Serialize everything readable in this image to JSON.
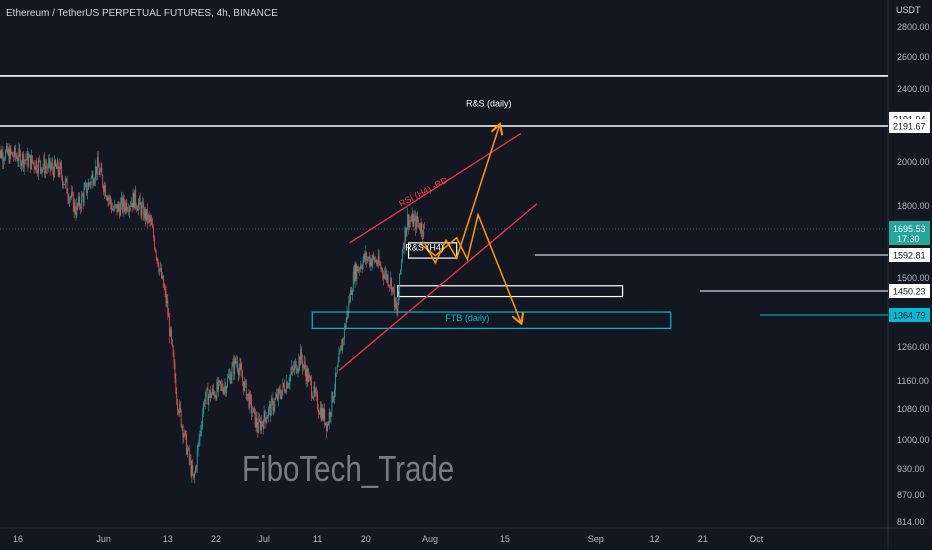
{
  "header": {
    "title": "Ethereum / TetherUS PERPETUAL FUTURES, 4h, BINANCE"
  },
  "watermark": "FiboTech_Trade",
  "colors": {
    "background": "#131722",
    "candle_up": "#26a69a",
    "candle_down": "#ef5350",
    "white_line": "#ffffff",
    "channel_red": "#f23645",
    "arrow_orange": "#ff9800",
    "ftb_cyan": "#00bcd4",
    "axis_text": "#b2b5be"
  },
  "chart_data": {
    "type": "candlestick",
    "unit_label": "USDT",
    "y_ticks": [
      "2800.00",
      "2600.00",
      "2400.00",
      "2000.00",
      "1800.00",
      "1500.00",
      "1260.00",
      "1160.00",
      "1080.00",
      "1000.00",
      "930.00",
      "870.00",
      "814.00"
    ],
    "y_tick_values": [
      2800,
      2600,
      2400,
      2000,
      1800,
      1500,
      1260,
      1160,
      1080,
      1000,
      930,
      870,
      814
    ],
    "x_ticks": [
      {
        "label": "16",
        "date": "2022-05-16"
      },
      {
        "label": "Jun",
        "date": "2022-06-01"
      },
      {
        "label": "13",
        "date": "2022-06-13"
      },
      {
        "label": "22",
        "date": "2022-06-22"
      },
      {
        "label": "Jul",
        "date": "2022-07-01"
      },
      {
        "label": "11",
        "date": "2022-07-11"
      },
      {
        "label": "20",
        "date": "2022-07-20"
      },
      {
        "label": "Aug",
        "date": "2022-08-01"
      },
      {
        "label": "15",
        "date": "2022-08-15"
      },
      {
        "label": "Sep",
        "date": "2022-09-01"
      },
      {
        "label": "12",
        "date": "2022-09-12"
      },
      {
        "label": "21",
        "date": "2022-09-21"
      },
      {
        "label": "Oct",
        "date": "2022-10-01"
      }
    ],
    "ylim": [
      814,
      2850
    ],
    "log_scale": true,
    "price_path": [
      {
        "date": "2022-05-12",
        "price": 2050
      },
      {
        "date": "2022-05-16",
        "price": 2030
      },
      {
        "date": "2022-05-20",
        "price": 1990
      },
      {
        "date": "2022-05-24",
        "price": 1960
      },
      {
        "date": "2022-05-27",
        "price": 1780
      },
      {
        "date": "2022-05-31",
        "price": 1980
      },
      {
        "date": "2022-06-03",
        "price": 1780
      },
      {
        "date": "2022-06-07",
        "price": 1830
      },
      {
        "date": "2022-06-10",
        "price": 1720
      },
      {
        "date": "2022-06-13",
        "price": 1400
      },
      {
        "date": "2022-06-15",
        "price": 1100
      },
      {
        "date": "2022-06-18",
        "price": 900
      },
      {
        "date": "2022-06-20",
        "price": 1110
      },
      {
        "date": "2022-06-24",
        "price": 1150
      },
      {
        "date": "2022-06-26",
        "price": 1220
      },
      {
        "date": "2022-06-30",
        "price": 1030
      },
      {
        "date": "2022-07-04",
        "price": 1120
      },
      {
        "date": "2022-07-08",
        "price": 1230
      },
      {
        "date": "2022-07-11",
        "price": 1100
      },
      {
        "date": "2022-07-13",
        "price": 1040
      },
      {
        "date": "2022-07-15",
        "price": 1200
      },
      {
        "date": "2022-07-18",
        "price": 1520
      },
      {
        "date": "2022-07-20",
        "price": 1580
      },
      {
        "date": "2022-07-22",
        "price": 1570
      },
      {
        "date": "2022-07-25",
        "price": 1480
      },
      {
        "date": "2022-07-26",
        "price": 1360
      },
      {
        "date": "2022-07-27",
        "price": 1620
      },
      {
        "date": "2022-07-28",
        "price": 1740
      },
      {
        "date": "2022-07-30",
        "price": 1720
      },
      {
        "date": "2022-07-31",
        "price": 1695
      }
    ],
    "horizontal_levels": [
      {
        "value": 2191.67,
        "label": "2191.67",
        "style": "white"
      },
      {
        "value": 1592.81,
        "label": "1592.81",
        "style": "white"
      },
      {
        "value": 1450.23,
        "label": "1450.23",
        "style": "white"
      },
      {
        "value": 1364.79,
        "label": "1364.79",
        "style": "cyan"
      }
    ],
    "top_line_value": 2480,
    "top_level_label": "2191.94",
    "current_price": {
      "value": 1695.53,
      "label": "1695.53",
      "countdown": "17:30"
    },
    "zones": [
      {
        "name": "R&S (daily)",
        "label": "R&S (daily)",
        "start": "2022-07-26",
        "end": "2022-09-06",
        "top": 1470,
        "bottom": 1430
      },
      {
        "name": "FTB (daily)",
        "label": "FTB (daily)",
        "start": "2022-07-10",
        "end": "2022-09-15",
        "top": 1375,
        "bottom": 1320
      },
      {
        "name": "R&S (H4)",
        "label": "R&S (H4)",
        "start": "2022-07-28",
        "end": "2022-08-06",
        "top": 1640,
        "bottom": 1580
      }
    ],
    "trendlines": [
      {
        "name": "upper-channel",
        "label": "RSI (H4) -RD",
        "from": {
          "date": "2022-07-17",
          "price": 1640
        },
        "to": {
          "date": "2022-08-18",
          "price": 2150
        }
      },
      {
        "name": "lower-channel",
        "from": {
          "date": "2022-07-15",
          "price": 1190
        },
        "to": {
          "date": "2022-08-21",
          "price": 1810
        }
      }
    ],
    "annotations": [
      {
        "text": "R&S (daily)",
        "date": "2022-08-12",
        "price": 2300
      },
      {
        "text": "RSI (H4) -RD",
        "date": "2022-07-31",
        "price": 1850
      },
      {
        "text": "R&S (H4)",
        "date": "2022-07-31",
        "price": 1610
      },
      {
        "text": "FTB (daily)",
        "date": "2022-08-08",
        "price": 1345
      }
    ],
    "projected_paths": [
      {
        "name": "bullish-path",
        "points": [
          {
            "date": "2022-07-31",
            "price": 1640
          },
          {
            "date": "2022-08-02",
            "price": 1560
          },
          {
            "date": "2022-08-04",
            "price": 1650
          },
          {
            "date": "2022-08-06",
            "price": 1580
          },
          {
            "date": "2022-08-14",
            "price": 2195
          }
        ]
      },
      {
        "name": "bearish-path",
        "points": [
          {
            "date": "2022-07-30",
            "price": 1640
          },
          {
            "date": "2022-08-02",
            "price": 1590
          },
          {
            "date": "2022-08-06",
            "price": 1660
          },
          {
            "date": "2022-08-08",
            "price": 1575
          },
          {
            "date": "2022-08-10",
            "price": 1760
          },
          {
            "date": "2022-08-18",
            "price": 1340
          }
        ]
      }
    ]
  }
}
